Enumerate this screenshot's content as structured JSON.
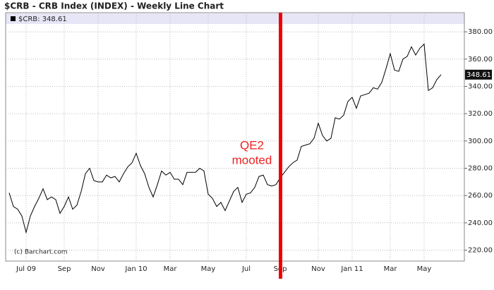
{
  "chart_data": {
    "type": "line",
    "title": "$CRB - CRB Index (INDEX) - Weekly Line Chart",
    "legend_label": "$CRB: 348.61",
    "copyright": "(c) Barchart.com",
    "annotation": [
      "QE2",
      "mooted"
    ],
    "categories": [
      null,
      null,
      null,
      null,
      "Jul 09",
      null,
      null,
      null,
      null,
      null,
      null,
      null,
      null,
      "Sep",
      null,
      null,
      null,
      null,
      null,
      null,
      null,
      "Nov",
      null,
      null,
      null,
      null,
      null,
      null,
      null,
      null,
      "Jan 10",
      null,
      null,
      null,
      null,
      null,
      null,
      null,
      "Mar",
      null,
      null,
      null,
      null,
      null,
      null,
      null,
      null,
      "May",
      null,
      null,
      null,
      null,
      null,
      null,
      null,
      null,
      "Jul",
      null,
      null,
      null,
      null,
      null,
      null,
      null,
      "Sep",
      null,
      null,
      null,
      null,
      null,
      null,
      null,
      null,
      "Nov",
      null,
      null,
      null,
      null,
      null,
      null,
      null,
      "Jan 11",
      null,
      null,
      null,
      null,
      null,
      null,
      null,
      null,
      "Mar",
      null,
      null,
      null,
      null,
      null,
      null,
      null,
      "May",
      null,
      null,
      null,
      null
    ],
    "series": [
      {
        "name": "$CRB",
        "color": "#000000",
        "values": [
          262,
          252,
          250,
          245,
          233,
          245,
          252,
          258,
          265,
          257,
          259,
          257,
          247,
          252,
          259,
          250,
          253,
          263,
          276,
          280,
          271,
          270,
          270,
          275,
          273,
          274,
          270,
          276,
          281,
          284,
          291,
          282,
          276,
          266,
          259,
          268,
          278,
          275,
          277,
          272,
          272,
          268,
          277,
          277,
          277,
          280,
          278,
          261,
          258,
          252,
          255,
          249,
          256,
          263,
          266,
          255,
          261,
          262,
          266,
          274,
          275,
          268,
          267,
          268,
          273,
          277,
          281,
          284,
          286,
          296,
          297,
          298,
          302,
          313,
          304,
          300,
          302,
          317,
          316,
          319,
          329,
          332,
          324,
          333,
          334,
          335,
          339,
          338,
          343,
          353,
          364,
          352,
          351,
          360,
          362,
          369,
          363,
          368,
          371,
          337,
          339,
          345,
          348.61
        ]
      }
    ],
    "ylim": [
      212,
      394
    ],
    "yticks": [
      {
        "value": 220,
        "label": "220.00"
      },
      {
        "value": 240,
        "label": "240.00"
      },
      {
        "value": 260,
        "label": "260.00"
      },
      {
        "value": 280,
        "label": "280.00"
      },
      {
        "value": 300,
        "label": "300.00"
      },
      {
        "value": 320,
        "label": "320.00"
      },
      {
        "value": 340,
        "label": "340.00"
      },
      {
        "value": 360,
        "label": "360.00"
      },
      {
        "value": 380,
        "label": "380.00"
      }
    ],
    "grid": true,
    "marker_color": "#ee0000"
  }
}
